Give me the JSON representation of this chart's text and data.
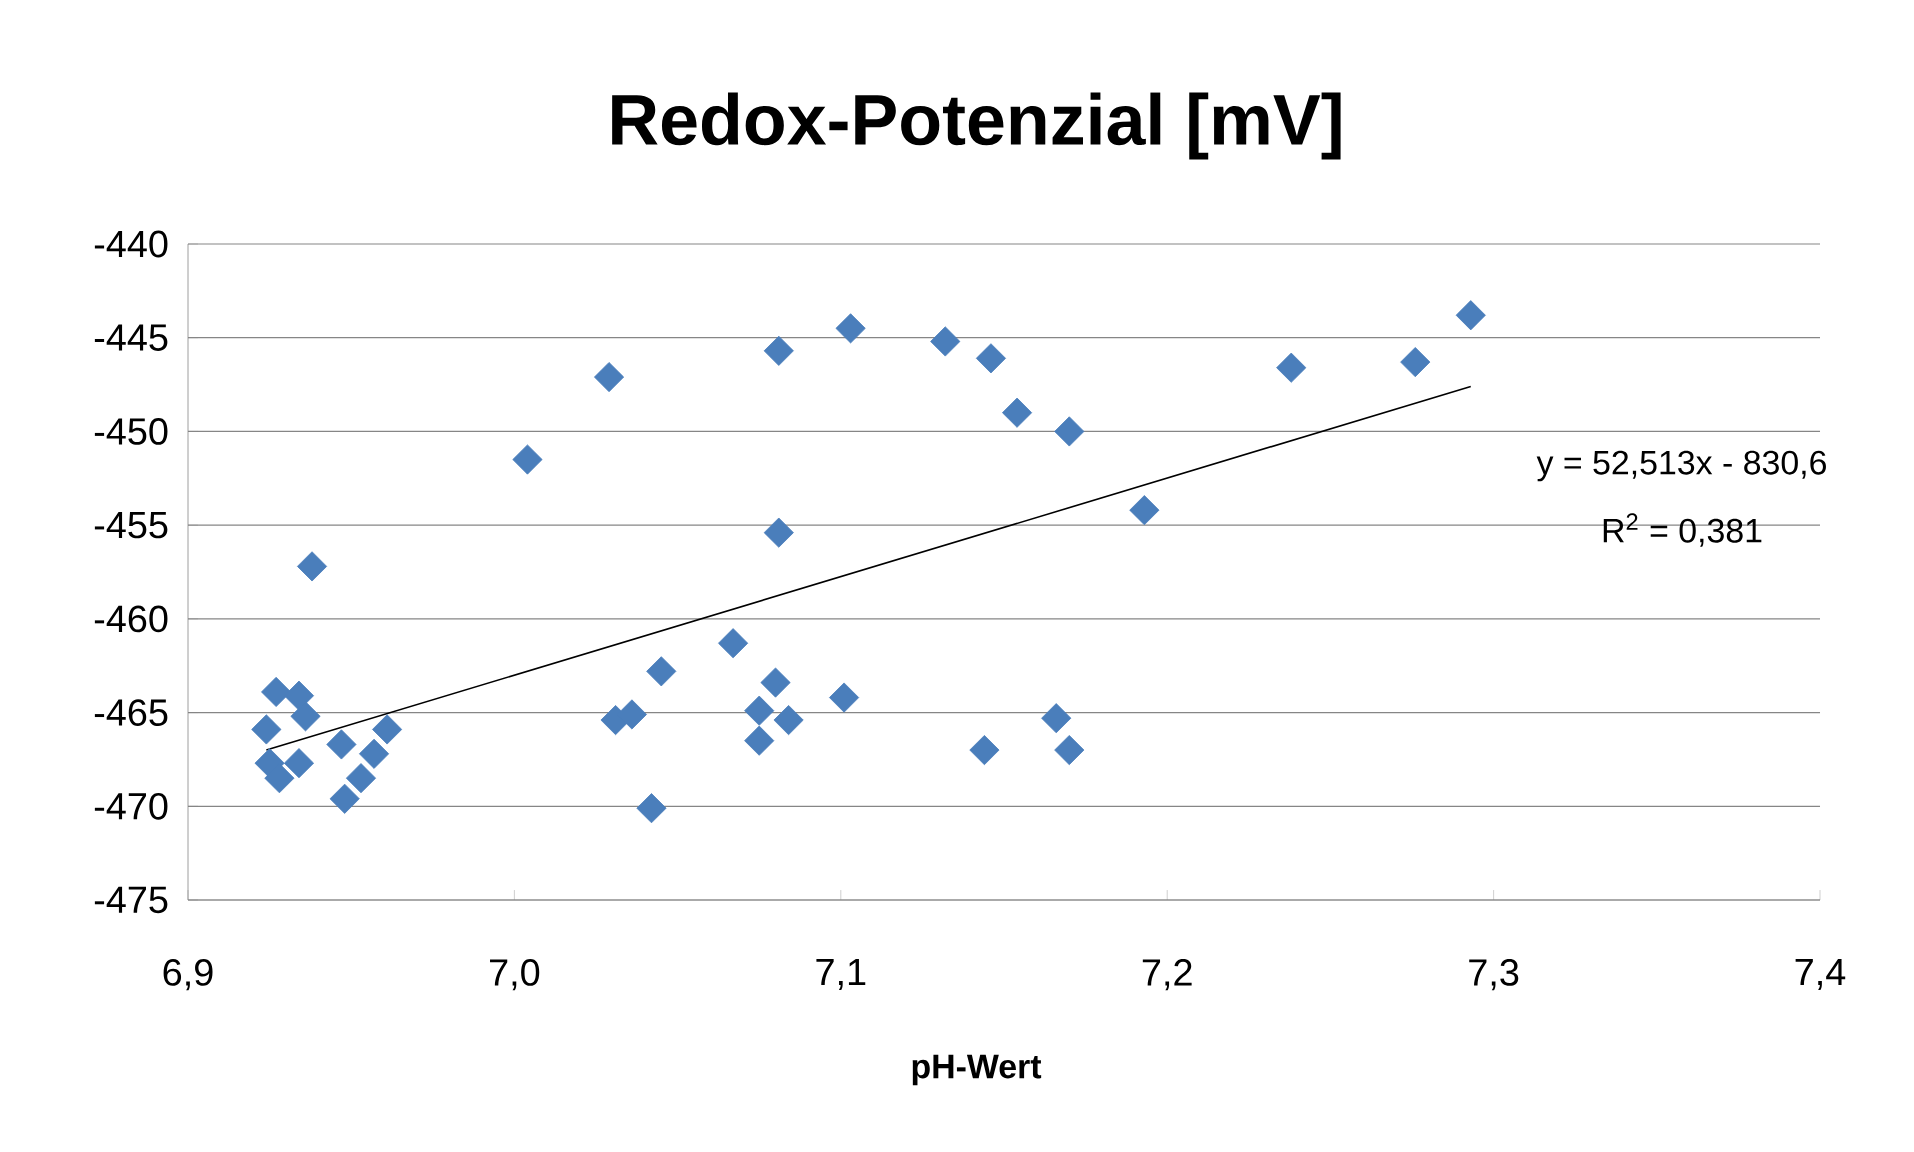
{
  "chart_data": {
    "type": "scatter",
    "title": "Redox-Potenzial [mV]",
    "xlabel": "pH-Wert",
    "series": [
      {
        "color": "#4a7ebb",
        "marker": "diamond",
        "x": [
          7.293,
          7.276,
          7.238,
          7.193,
          7.17,
          7.154,
          7.146,
          7.132,
          7.103,
          7.081,
          7.029,
          7.081,
          7.067,
          7.045,
          7.031,
          7.036,
          7.042,
          7.08,
          7.075,
          7.084,
          7.075,
          7.101,
          7.144,
          7.166,
          7.17,
          6.938,
          7.004,
          6.927,
          6.934,
          6.936,
          6.924,
          6.925,
          6.928,
          6.934,
          6.947,
          6.961,
          6.957,
          6.953,
          6.948
        ],
        "values": [
          -443.8,
          -446.3,
          -446.6,
          -454.2,
          -450.0,
          -449.0,
          -446.1,
          -445.2,
          -444.5,
          -445.7,
          -447.1,
          -455.4,
          -461.3,
          -462.8,
          -465.4,
          -465.1,
          -470.1,
          -463.4,
          -464.9,
          -465.4,
          -466.5,
          -464.2,
          -467.0,
          -465.3,
          -467.0,
          -457.2,
          -451.5,
          -463.9,
          -464.1,
          -465.2,
          -465.9,
          -467.7,
          -468.5,
          -467.7,
          -466.7,
          -465.9,
          -467.2,
          -468.5,
          -469.6
        ]
      },
      {
        "type": "line",
        "color": "#000000",
        "marker": "none",
        "line_style": "solid",
        "x": [
          6.924,
          7.293
        ],
        "values": [
          -467.0,
          -447.6
        ]
      }
    ],
    "xlim": [
      6.9,
      7.4
    ],
    "ylim": [
      -475,
      -440
    ],
    "xticks": [
      {
        "value": 6.9,
        "label": "6,9"
      },
      {
        "value": 7.0,
        "label": "7,0"
      },
      {
        "value": 7.1,
        "label": "7,1"
      },
      {
        "value": 7.2,
        "label": "7,2"
      },
      {
        "value": 7.3,
        "label": "7,3"
      },
      {
        "value": 7.4,
        "label": "7,4"
      }
    ],
    "yticks": [
      -440,
      -445,
      -450,
      -455,
      -460,
      -465,
      -470,
      -475
    ],
    "grid": "y",
    "annotations": [
      "y = 52,513x - 830,6",
      "R$^{2}$ = 0,381"
    ]
  }
}
